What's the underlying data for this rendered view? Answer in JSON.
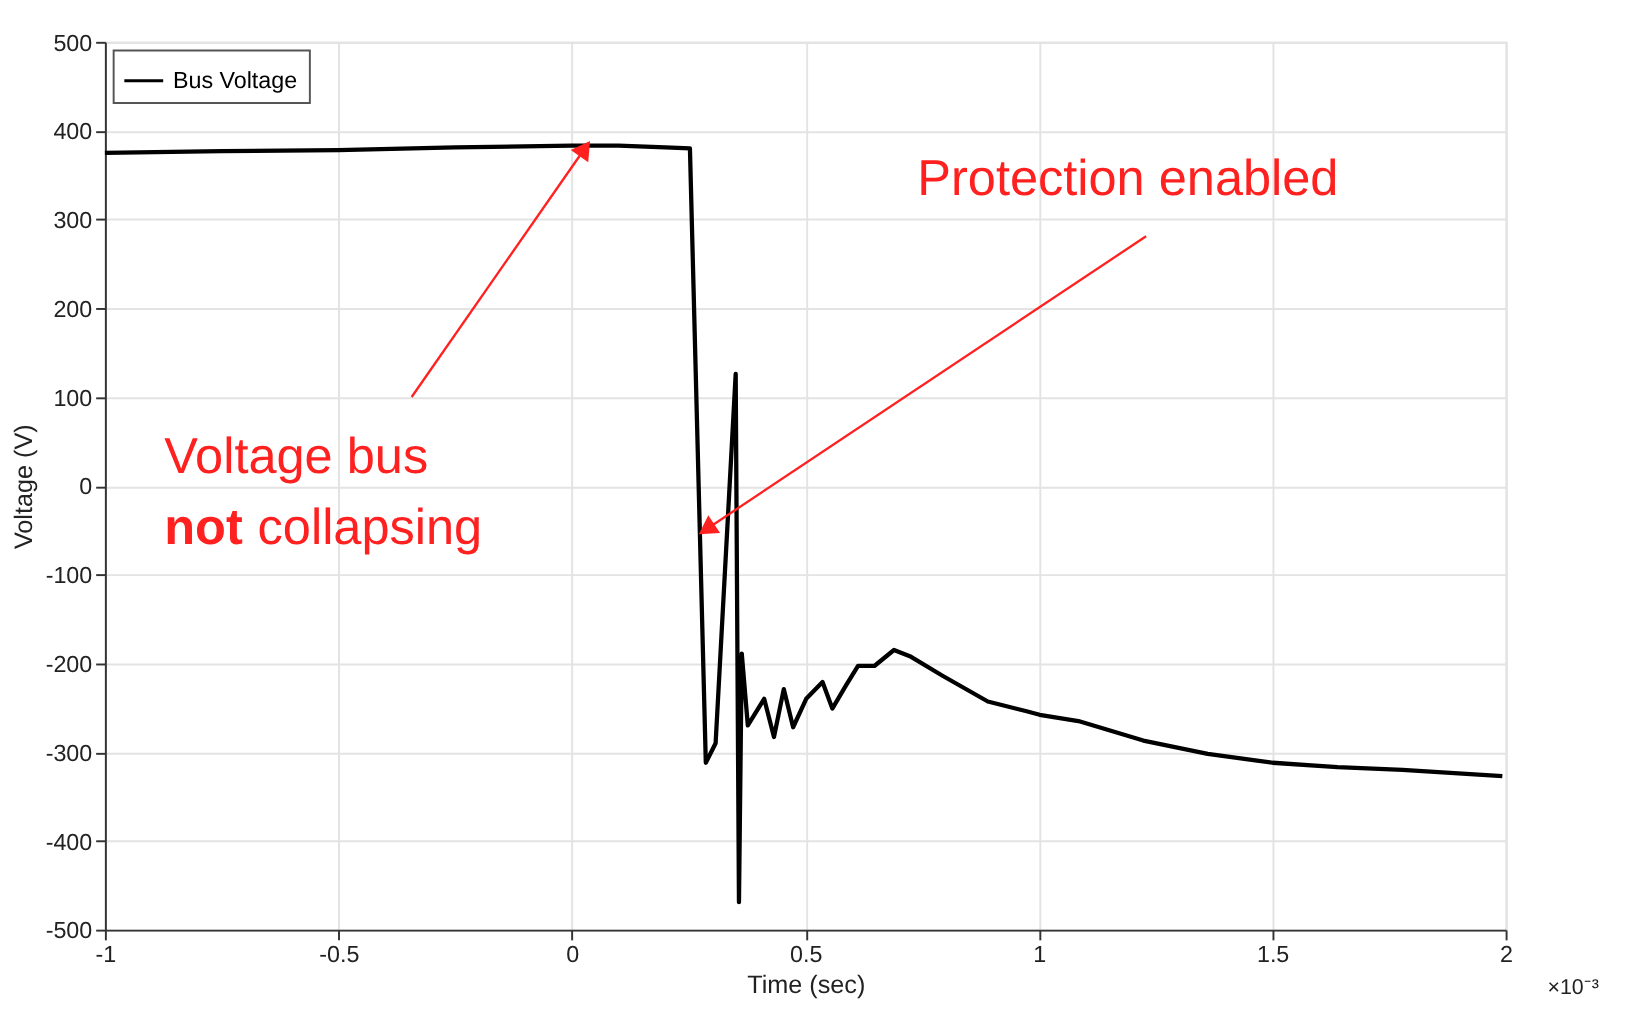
{
  "chart_data": {
    "type": "line",
    "xlabel": "Time (sec)",
    "ylabel": "Voltage (V)",
    "xlim": [
      -1,
      2
    ],
    "xticks": [
      -1,
      -0.5,
      0,
      0.5,
      1,
      1.5,
      2
    ],
    "ylim": [
      -500,
      500
    ],
    "yticks": [
      -500,
      -400,
      -300,
      -200,
      -100,
      0,
      100,
      200,
      300,
      400,
      500
    ],
    "grid": true,
    "legend": "top left",
    "line_style": "solid",
    "marker": "none",
    "series": [
      {
        "name": "Bus Voltage",
        "color": "#000000",
        "x": [
          -1,
          -0.75,
          -0.5,
          -0.25,
          0,
          0.1,
          0.2,
          0.253,
          0.287,
          0.308,
          0.351,
          0.358,
          0.364,
          0.377,
          0.412,
          0.433,
          0.454,
          0.474,
          0.502,
          0.537,
          0.558,
          0.586,
          0.613,
          0.648,
          0.69,
          0.724,
          0.794,
          0.891,
          0.974,
          1.002,
          1.085,
          1.224,
          1.362,
          1.501,
          1.64,
          1.779,
          1.993
        ],
        "values": [
          375,
          377,
          378,
          381,
          383,
          383,
          381,
          380,
          -312,
          -290,
          126,
          -469,
          -189,
          -270,
          -240,
          -283,
          -229,
          -272,
          -240,
          -221,
          -251,
          -226,
          -203,
          -203,
          -185,
          -192,
          -214,
          -243,
          -254,
          -258,
          -265,
          -287,
          -302,
          -312,
          -317,
          -320,
          -327
        ]
      }
    ],
    "annotations": [
      "×10⁻³",
      {
        "text": "Protection enabled",
        "x": 0.294,
        "y": -47
      },
      {
        "text": "Voltage bus not collapsing",
        "x": 0.024,
        "y": 377
      }
    ]
  }
}
